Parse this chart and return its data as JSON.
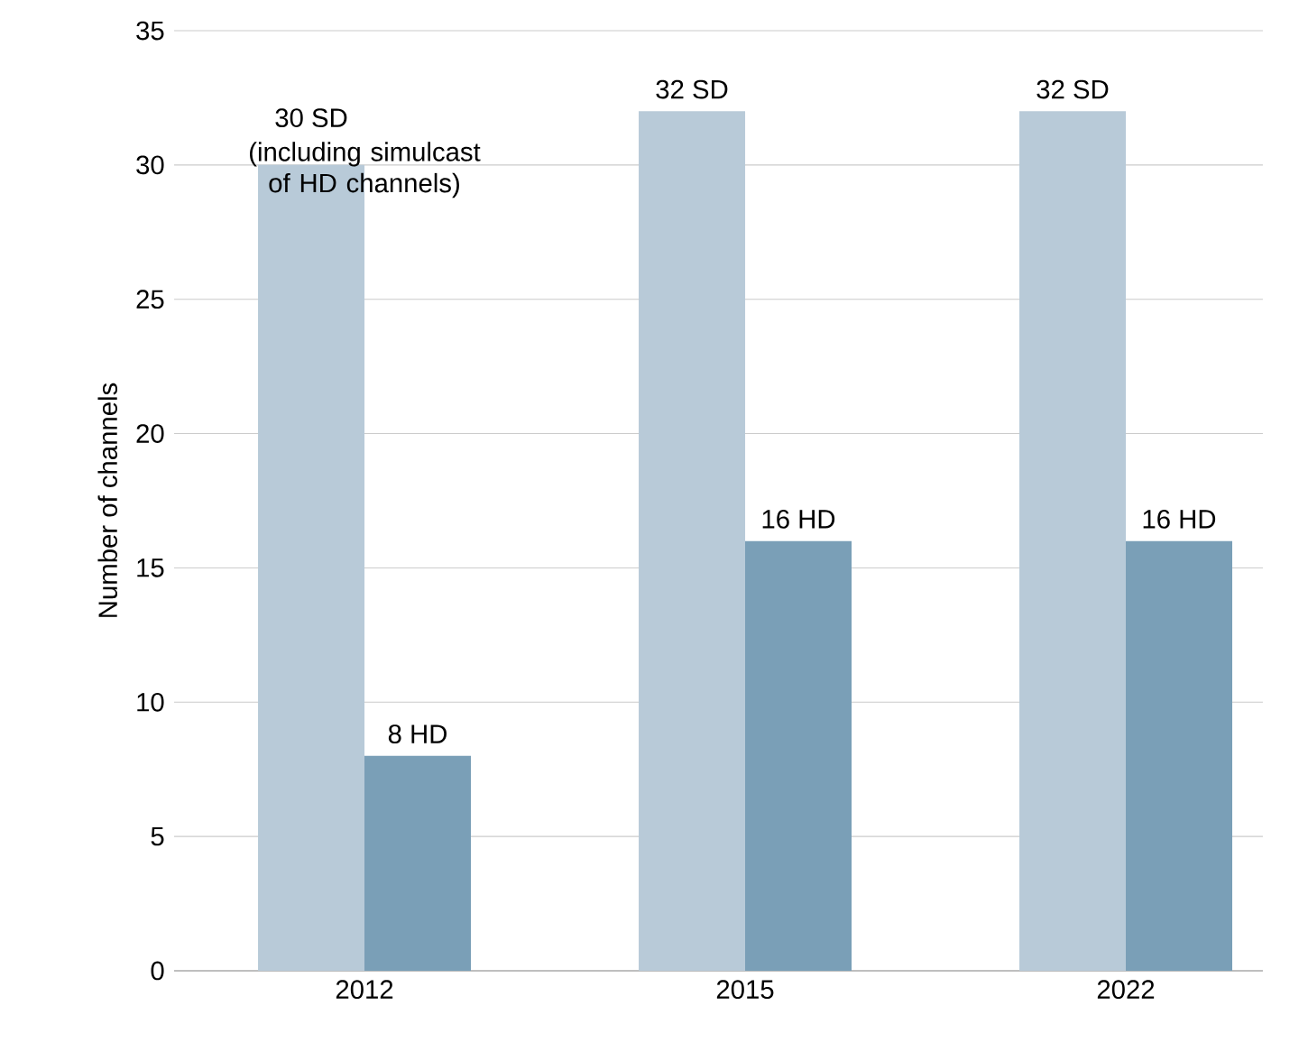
{
  "chart_data": {
    "type": "bar",
    "ylabel": "Number of channels",
    "categories": [
      "2012",
      "2015",
      "2022"
    ],
    "series": [
      {
        "color": "#b8cad8",
        "values": [
          30,
          32,
          32
        ],
        "value_labels": [
          "30 SD",
          "32 SD",
          "32 SD"
        ]
      },
      {
        "color": "#7a9fb7",
        "values": [
          8,
          16,
          16
        ],
        "value_labels": [
          "8 HD",
          "16 HD",
          "16 HD"
        ]
      }
    ],
    "annotations": [
      {
        "text": "(including simulcast of HD channels)",
        "x": "2012",
        "y": 30
      }
    ],
    "ylim": [
      0,
      35
    ],
    "yticks": [
      0,
      5,
      10,
      15,
      20,
      25,
      30,
      35
    ],
    "grid": "y"
  }
}
